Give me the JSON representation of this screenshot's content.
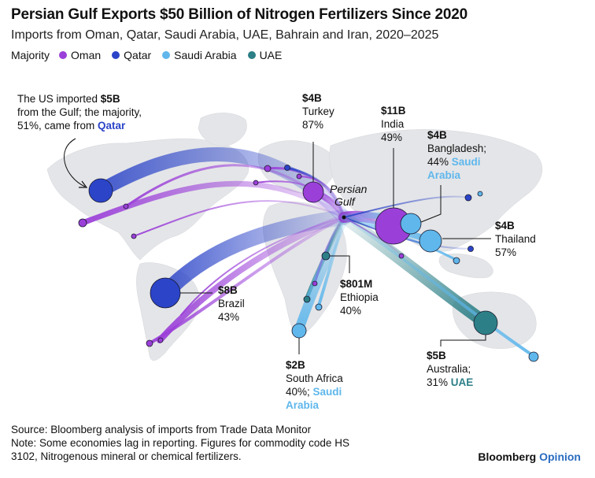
{
  "title": "Persian Gulf Exports $50 Billion of Nitrogen Fertilizers Since 2020",
  "subtitle": "Imports from Oman, Qatar, Saudi Arabia, UAE, Bahrain and Iran, 2020–2025",
  "legend": {
    "title": "Majority",
    "items": [
      {
        "label": "Oman",
        "color": "#9b3fd9"
      },
      {
        "label": "Qatar",
        "color": "#2b44c8"
      },
      {
        "label": "Saudi Arabia",
        "color": "#5fb7ec"
      },
      {
        "label": "UAE",
        "color": "#2c7f86"
      }
    ]
  },
  "hub": {
    "label_line1": "Persian",
    "label_line2": "Gulf"
  },
  "annotations": {
    "us": {
      "line1": "The US imported ",
      "value": "$5B",
      "line2": "from the Gulf; the majority,",
      "line3": "51%, came from ",
      "country": "Qatar"
    },
    "turkey": {
      "value": "$4B",
      "name": "Turkey",
      "share": "87%"
    },
    "india": {
      "value": "$11B",
      "name": "India",
      "share": "49%"
    },
    "bangladesh": {
      "value": "$4B",
      "name": "Bangladesh;",
      "share": "44% ",
      "country1": "Saudi",
      "country2": "Arabia"
    },
    "thailand": {
      "value": "$4B",
      "name": "Thailand",
      "share": "57%"
    },
    "brazil": {
      "value": "$8B",
      "name": "Brazil",
      "share": "43%"
    },
    "ethiopia": {
      "value": "$801M",
      "name": "Ethiopia",
      "share": "40%"
    },
    "south_africa": {
      "value": "$2B",
      "name": "South Africa",
      "share": "40%; ",
      "country1": "Saudi",
      "country2": "Arabia"
    },
    "australia": {
      "value": "$5B",
      "name": "Australia;",
      "share": "31% ",
      "country": "UAE"
    }
  },
  "footer": {
    "source": "Source: Bloomberg analysis of imports from Trade Data Monitor",
    "note1": "Note: Some economies lag in reporting. Figures for commodity code HS",
    "note2": "3102, Nitrogenous mineral or chemical fertilizers."
  },
  "brand": {
    "name": "Bloomberg",
    "suffix": "Opinion"
  }
}
